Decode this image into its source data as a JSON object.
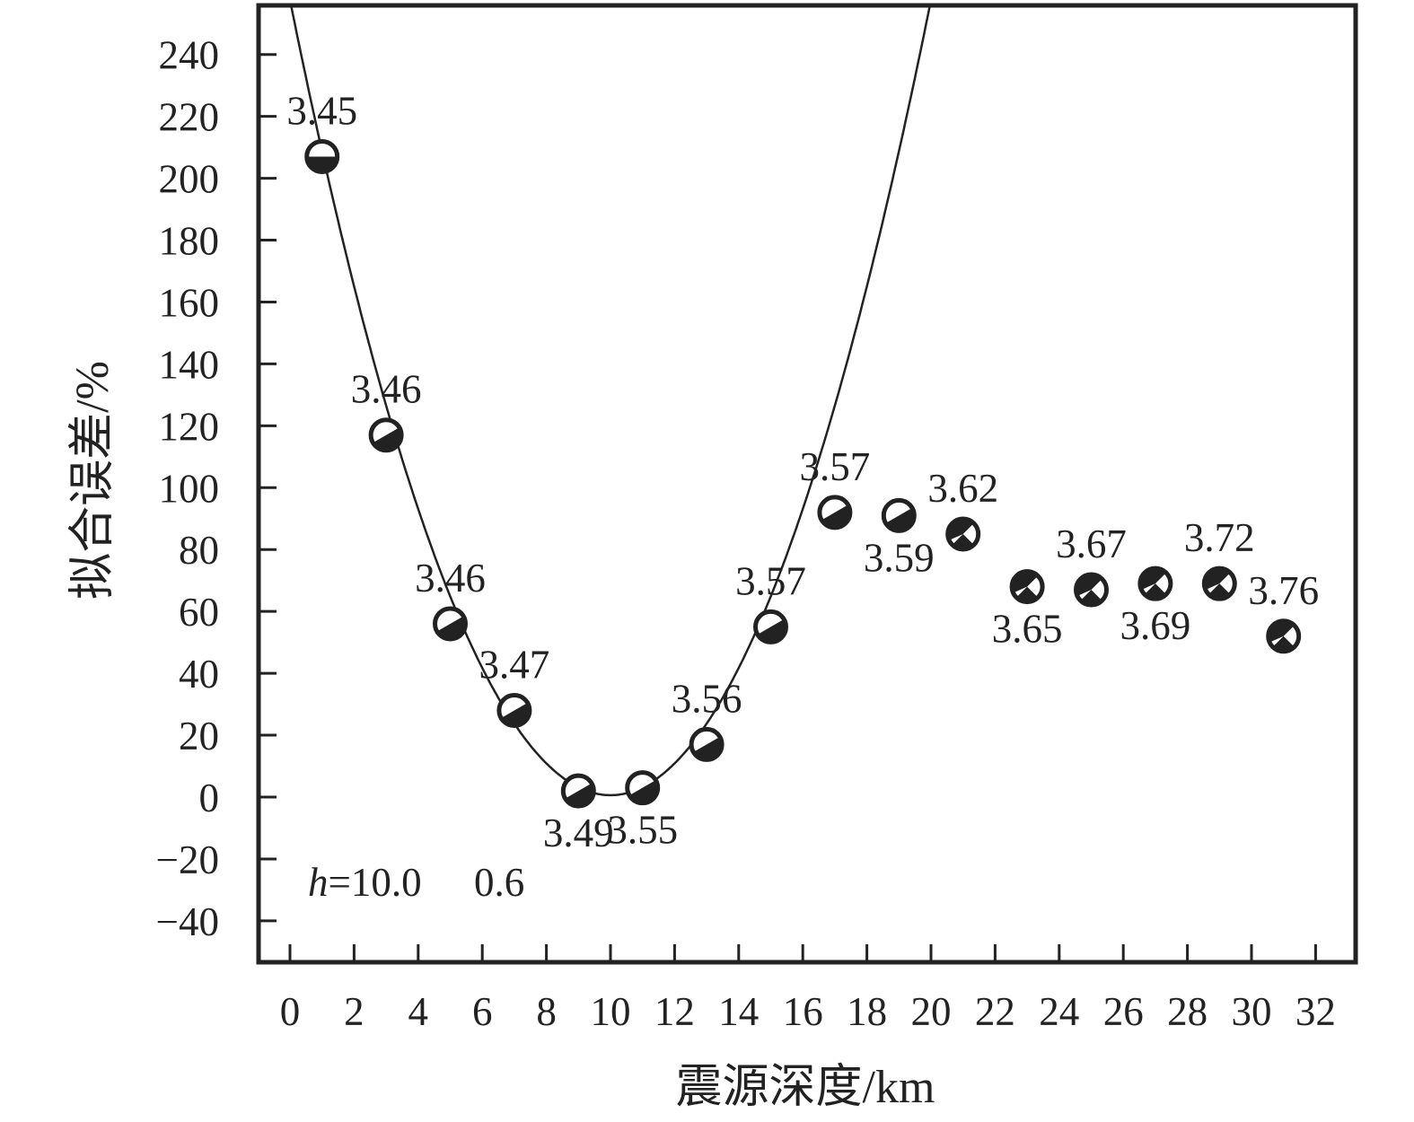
{
  "chart_data": {
    "type": "scatter",
    "xlabel": "震源深度/km",
    "ylabel": "拟合误差/%",
    "xlim": [
      -1,
      33
    ],
    "ylim": [
      -50,
      258
    ],
    "x_ticks": [
      0,
      2,
      4,
      6,
      8,
      10,
      12,
      14,
      16,
      18,
      20,
      22,
      24,
      26,
      28,
      30,
      32
    ],
    "x_tick_labels": [
      "0",
      "2",
      "4",
      "6",
      "8",
      "10",
      "12",
      "14",
      "16",
      "18",
      "20",
      "22",
      "24",
      "26",
      "28",
      "30",
      "32"
    ],
    "y_ticks": [
      -40,
      -20,
      0,
      20,
      40,
      60,
      80,
      100,
      120,
      140,
      160,
      180,
      200,
      220,
      240
    ],
    "y_tick_labels": [
      "−40",
      "−20",
      "0",
      "20",
      "40",
      "60",
      "80",
      "100",
      "120",
      "140",
      "160",
      "180",
      "200",
      "220",
      "240"
    ],
    "grid": false,
    "points": [
      {
        "x": 1,
        "y": 207,
        "label": "3.45",
        "label_pos": "above"
      },
      {
        "x": 3,
        "y": 117,
        "label": "3.46",
        "label_pos": "above"
      },
      {
        "x": 5,
        "y": 56,
        "label": "3.46",
        "label_pos": "above"
      },
      {
        "x": 7,
        "y": 28,
        "label": "3.47",
        "label_pos": "above"
      },
      {
        "x": 9,
        "y": 2,
        "label": "3.49",
        "label_pos": "below"
      },
      {
        "x": 11,
        "y": 3,
        "label": "3.55",
        "label_pos": "below"
      },
      {
        "x": 13,
        "y": 17,
        "label": "3.56",
        "label_pos": "above"
      },
      {
        "x": 15,
        "y": 55,
        "label": "3.57",
        "label_pos": "above"
      },
      {
        "x": 17,
        "y": 92,
        "label": "3.57",
        "label_pos": "above"
      },
      {
        "x": 19,
        "y": 91,
        "label": "3.59",
        "label_pos": "below"
      },
      {
        "x": 21,
        "y": 85,
        "label": "3.62",
        "label_pos": "above"
      },
      {
        "x": 23,
        "y": 68,
        "label": "3.65",
        "label_pos": "below"
      },
      {
        "x": 25,
        "y": 67,
        "label": "3.67",
        "label_pos": "above"
      },
      {
        "x": 27,
        "y": 69,
        "label": "3.69",
        "label_pos": "below"
      },
      {
        "x": 29,
        "y": 69,
        "label": "3.72",
        "label_pos": "above"
      },
      {
        "x": 31,
        "y": 52,
        "label": "3.76",
        "label_pos": "above"
      }
    ],
    "fit_curve": {
      "type": "quadratic",
      "vertex_x": 10.0,
      "vertex_y": 0.6,
      "a": 2.57
    },
    "annotations": {
      "h_symbol": "h",
      "h_value": "=10.0",
      "min_value": "0.6"
    }
  }
}
